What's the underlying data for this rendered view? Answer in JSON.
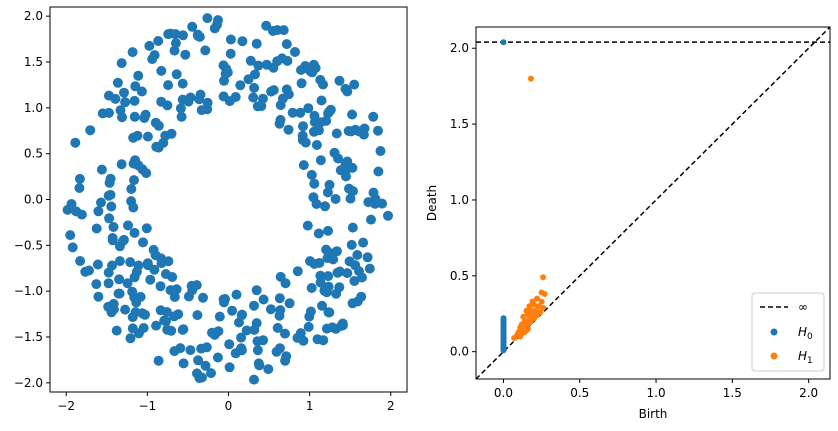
{
  "colors": {
    "h0": "#1f77b4",
    "h1": "#ff7f0e",
    "line": "#000000"
  },
  "chart_data": [
    {
      "type": "scatter",
      "title": "",
      "xlabel": "",
      "ylabel": "",
      "xlim": [
        -2.2,
        2.2
      ],
      "ylim": [
        -2.1,
        2.1
      ],
      "xticks": [
        -2,
        -1,
        0,
        1,
        2
      ],
      "yticks": [
        -2.0,
        -1.5,
        -1.0,
        -0.5,
        0.0,
        0.5,
        1.0,
        1.5,
        2.0
      ],
      "xtick_labels": [
        "−2",
        "−1",
        "0",
        "1",
        "2"
      ],
      "ytick_labels": [
        "−2.0",
        "−1.5",
        "−1.0",
        "−0.5",
        "0.0",
        "0.5",
        "1.0",
        "1.5",
        "2.0"
      ],
      "grid": false,
      "series": [
        {
          "color": "#1f77b4",
          "point_count": 400,
          "points": []
        }
      ],
      "shape": "annulus",
      "inner_radius": 1.0,
      "outer_radius": 2.0
    },
    {
      "type": "scatter",
      "title": "",
      "xlabel": "Birth",
      "ylabel": "Death",
      "xlim": [
        -0.18,
        2.14
      ],
      "ylim": [
        -0.18,
        2.14
      ],
      "xticks": [
        0.0,
        0.5,
        1.0,
        1.5,
        2.0
      ],
      "yticks": [
        0.0,
        0.5,
        1.0,
        1.5,
        2.0
      ],
      "xtick_labels": [
        "0.0",
        "0.5",
        "1.0",
        "1.5",
        "2.0"
      ],
      "ytick_labels": [
        "0.0",
        "0.5",
        "1.0",
        "1.5",
        "2.0"
      ],
      "grid": false,
      "legend": {
        "position": "bottom-right",
        "entries": [
          "∞",
          "H0",
          "H1"
        ]
      },
      "infinity_line": 2.04,
      "diagonal": true,
      "series": [
        {
          "name": "H0",
          "color": "#1f77b4",
          "points": [
            [
              0.0,
              2.04
            ],
            [
              0.0,
              0.01
            ],
            [
              0.0,
              0.02
            ],
            [
              0.0,
              0.03
            ],
            [
              0.0,
              0.04
            ],
            [
              0.0,
              0.05
            ],
            [
              0.0,
              0.06
            ],
            [
              0.0,
              0.07
            ],
            [
              0.0,
              0.08
            ],
            [
              0.0,
              0.09
            ],
            [
              0.0,
              0.1
            ],
            [
              0.0,
              0.11
            ],
            [
              0.0,
              0.12
            ],
            [
              0.0,
              0.13
            ],
            [
              0.0,
              0.14
            ],
            [
              0.0,
              0.15
            ],
            [
              0.0,
              0.16
            ],
            [
              0.0,
              0.17
            ],
            [
              0.0,
              0.18
            ],
            [
              0.0,
              0.19
            ],
            [
              0.0,
              0.2
            ],
            [
              0.0,
              0.21
            ],
            [
              0.0,
              0.22
            ]
          ]
        },
        {
          "name": "H1",
          "color": "#ff7f0e",
          "points": [
            [
              0.18,
              1.8
            ],
            [
              0.26,
              0.49
            ],
            [
              0.25,
              0.39
            ],
            [
              0.27,
              0.38
            ],
            [
              0.22,
              0.35
            ],
            [
              0.25,
              0.33
            ],
            [
              0.19,
              0.33
            ],
            [
              0.2,
              0.31
            ],
            [
              0.17,
              0.3
            ],
            [
              0.23,
              0.3
            ],
            [
              0.26,
              0.29
            ],
            [
              0.15,
              0.27
            ],
            [
              0.18,
              0.27
            ],
            [
              0.21,
              0.27
            ],
            [
              0.24,
              0.26
            ],
            [
              0.16,
              0.25
            ],
            [
              0.19,
              0.24
            ],
            [
              0.22,
              0.24
            ],
            [
              0.13,
              0.23
            ],
            [
              0.17,
              0.22
            ],
            [
              0.2,
              0.22
            ],
            [
              0.14,
              0.2
            ],
            [
              0.18,
              0.2
            ],
            [
              0.12,
              0.18
            ],
            [
              0.15,
              0.17
            ],
            [
              0.17,
              0.19
            ],
            [
              0.11,
              0.16
            ],
            [
              0.13,
              0.15
            ],
            [
              0.16,
              0.15
            ],
            [
              0.1,
              0.13
            ],
            [
              0.14,
              0.13
            ],
            [
              0.12,
              0.12
            ],
            [
              0.15,
              0.14
            ],
            [
              0.09,
              0.11
            ],
            [
              0.11,
              0.1
            ],
            [
              0.07,
              0.09
            ]
          ]
        }
      ]
    }
  ]
}
